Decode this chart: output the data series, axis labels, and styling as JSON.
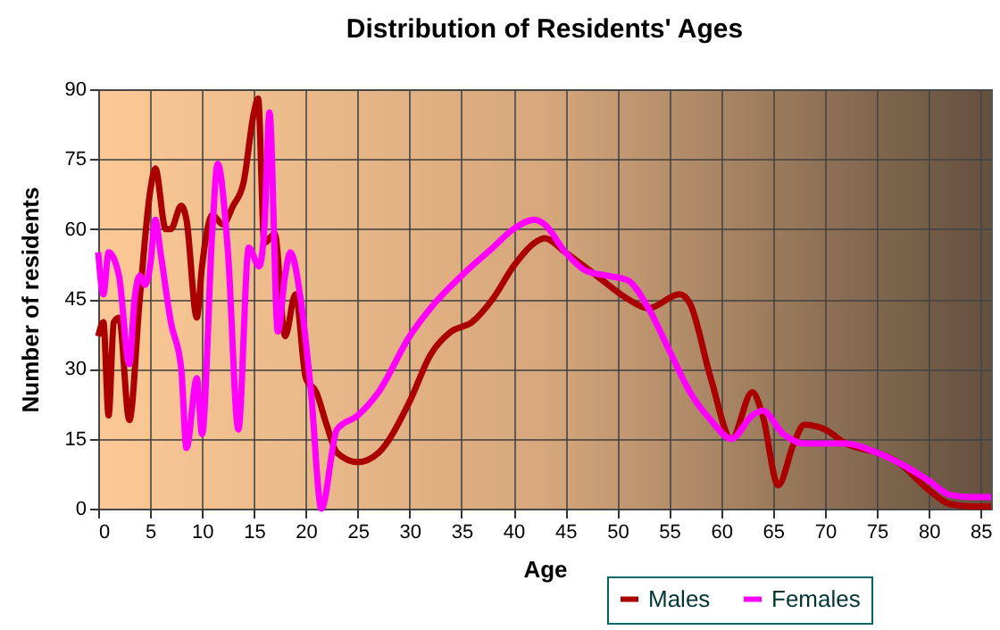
{
  "chart_data": {
    "type": "line",
    "title": "Distribution of Residents' Ages",
    "xlabel": "Age",
    "ylabel": "Number of residents",
    "xlim": [
      0,
      86
    ],
    "xticks": [
      0,
      5,
      10,
      15,
      20,
      25,
      30,
      35,
      40,
      45,
      50,
      55,
      60,
      65,
      70,
      75,
      80,
      85
    ],
    "ylim": [
      0,
      90
    ],
    "yticks": [
      0,
      15,
      30,
      45,
      60,
      75,
      90
    ],
    "grid": true,
    "legend": "bottom right",
    "series": [
      {
        "name": "Males",
        "color": "#aa0000",
        "x": [
          0,
          0.5,
          1,
          1.5,
          2,
          3,
          4,
          5,
          5.5,
          6.5,
          7,
          8,
          8.5,
          9.5,
          10,
          11,
          12,
          13,
          14,
          15,
          15.4,
          16,
          17,
          18,
          19,
          20,
          21,
          22,
          23,
          25,
          27,
          30,
          32,
          34,
          36,
          38,
          40,
          42,
          43,
          45,
          48,
          51,
          53,
          56,
          57,
          59,
          61,
          63,
          64,
          65.5,
          67,
          68,
          70,
          72,
          75,
          77,
          80,
          82,
          84,
          86
        ],
        "values": [
          37,
          40,
          20,
          40,
          41,
          19,
          45,
          68,
          73,
          60,
          60,
          65,
          62,
          41,
          52,
          63,
          61,
          65,
          70,
          85,
          88,
          57,
          59,
          37,
          46,
          28,
          25,
          18,
          12,
          10,
          12,
          23,
          33,
          38,
          40,
          45,
          52,
          57,
          58,
          55,
          50,
          45,
          43,
          46,
          44,
          28,
          15,
          25,
          20,
          5,
          14,
          18,
          17,
          14,
          12,
          10,
          4,
          1,
          0.5,
          0.5
        ]
      },
      {
        "name": "Females",
        "color": "#ff00ff",
        "x": [
          0,
          0.5,
          1,
          2,
          3,
          3.5,
          4,
          4.5,
          5,
          5.5,
          6,
          7,
          8,
          8.5,
          9.5,
          10,
          11,
          11.5,
          12.5,
          13.5,
          14.5,
          15.5,
          16,
          16.5,
          17.3,
          18,
          18.5,
          19.5,
          20.5,
          21.5,
          23,
          25,
          27,
          30,
          32,
          35,
          38,
          40,
          42,
          43,
          45,
          47,
          49,
          51,
          53,
          55,
          57,
          59,
          61,
          63,
          64,
          66,
          68,
          70,
          72,
          75,
          77,
          80,
          82,
          84,
          86
        ],
        "values": [
          55,
          46,
          55,
          50,
          31,
          45,
          50,
          48,
          52,
          62,
          55,
          40,
          30,
          13,
          28,
          16,
          60,
          74,
          55,
          17,
          56,
          52,
          60,
          85,
          38,
          50,
          55,
          45,
          25,
          0,
          17,
          20,
          25,
          37,
          43,
          50,
          56,
          60,
          62,
          61,
          55,
          51,
          50,
          49,
          43,
          34,
          25,
          19,
          15,
          20,
          21,
          16,
          14,
          14,
          14,
          12,
          10,
          6,
          3,
          2.5,
          2.5
        ]
      }
    ]
  }
}
